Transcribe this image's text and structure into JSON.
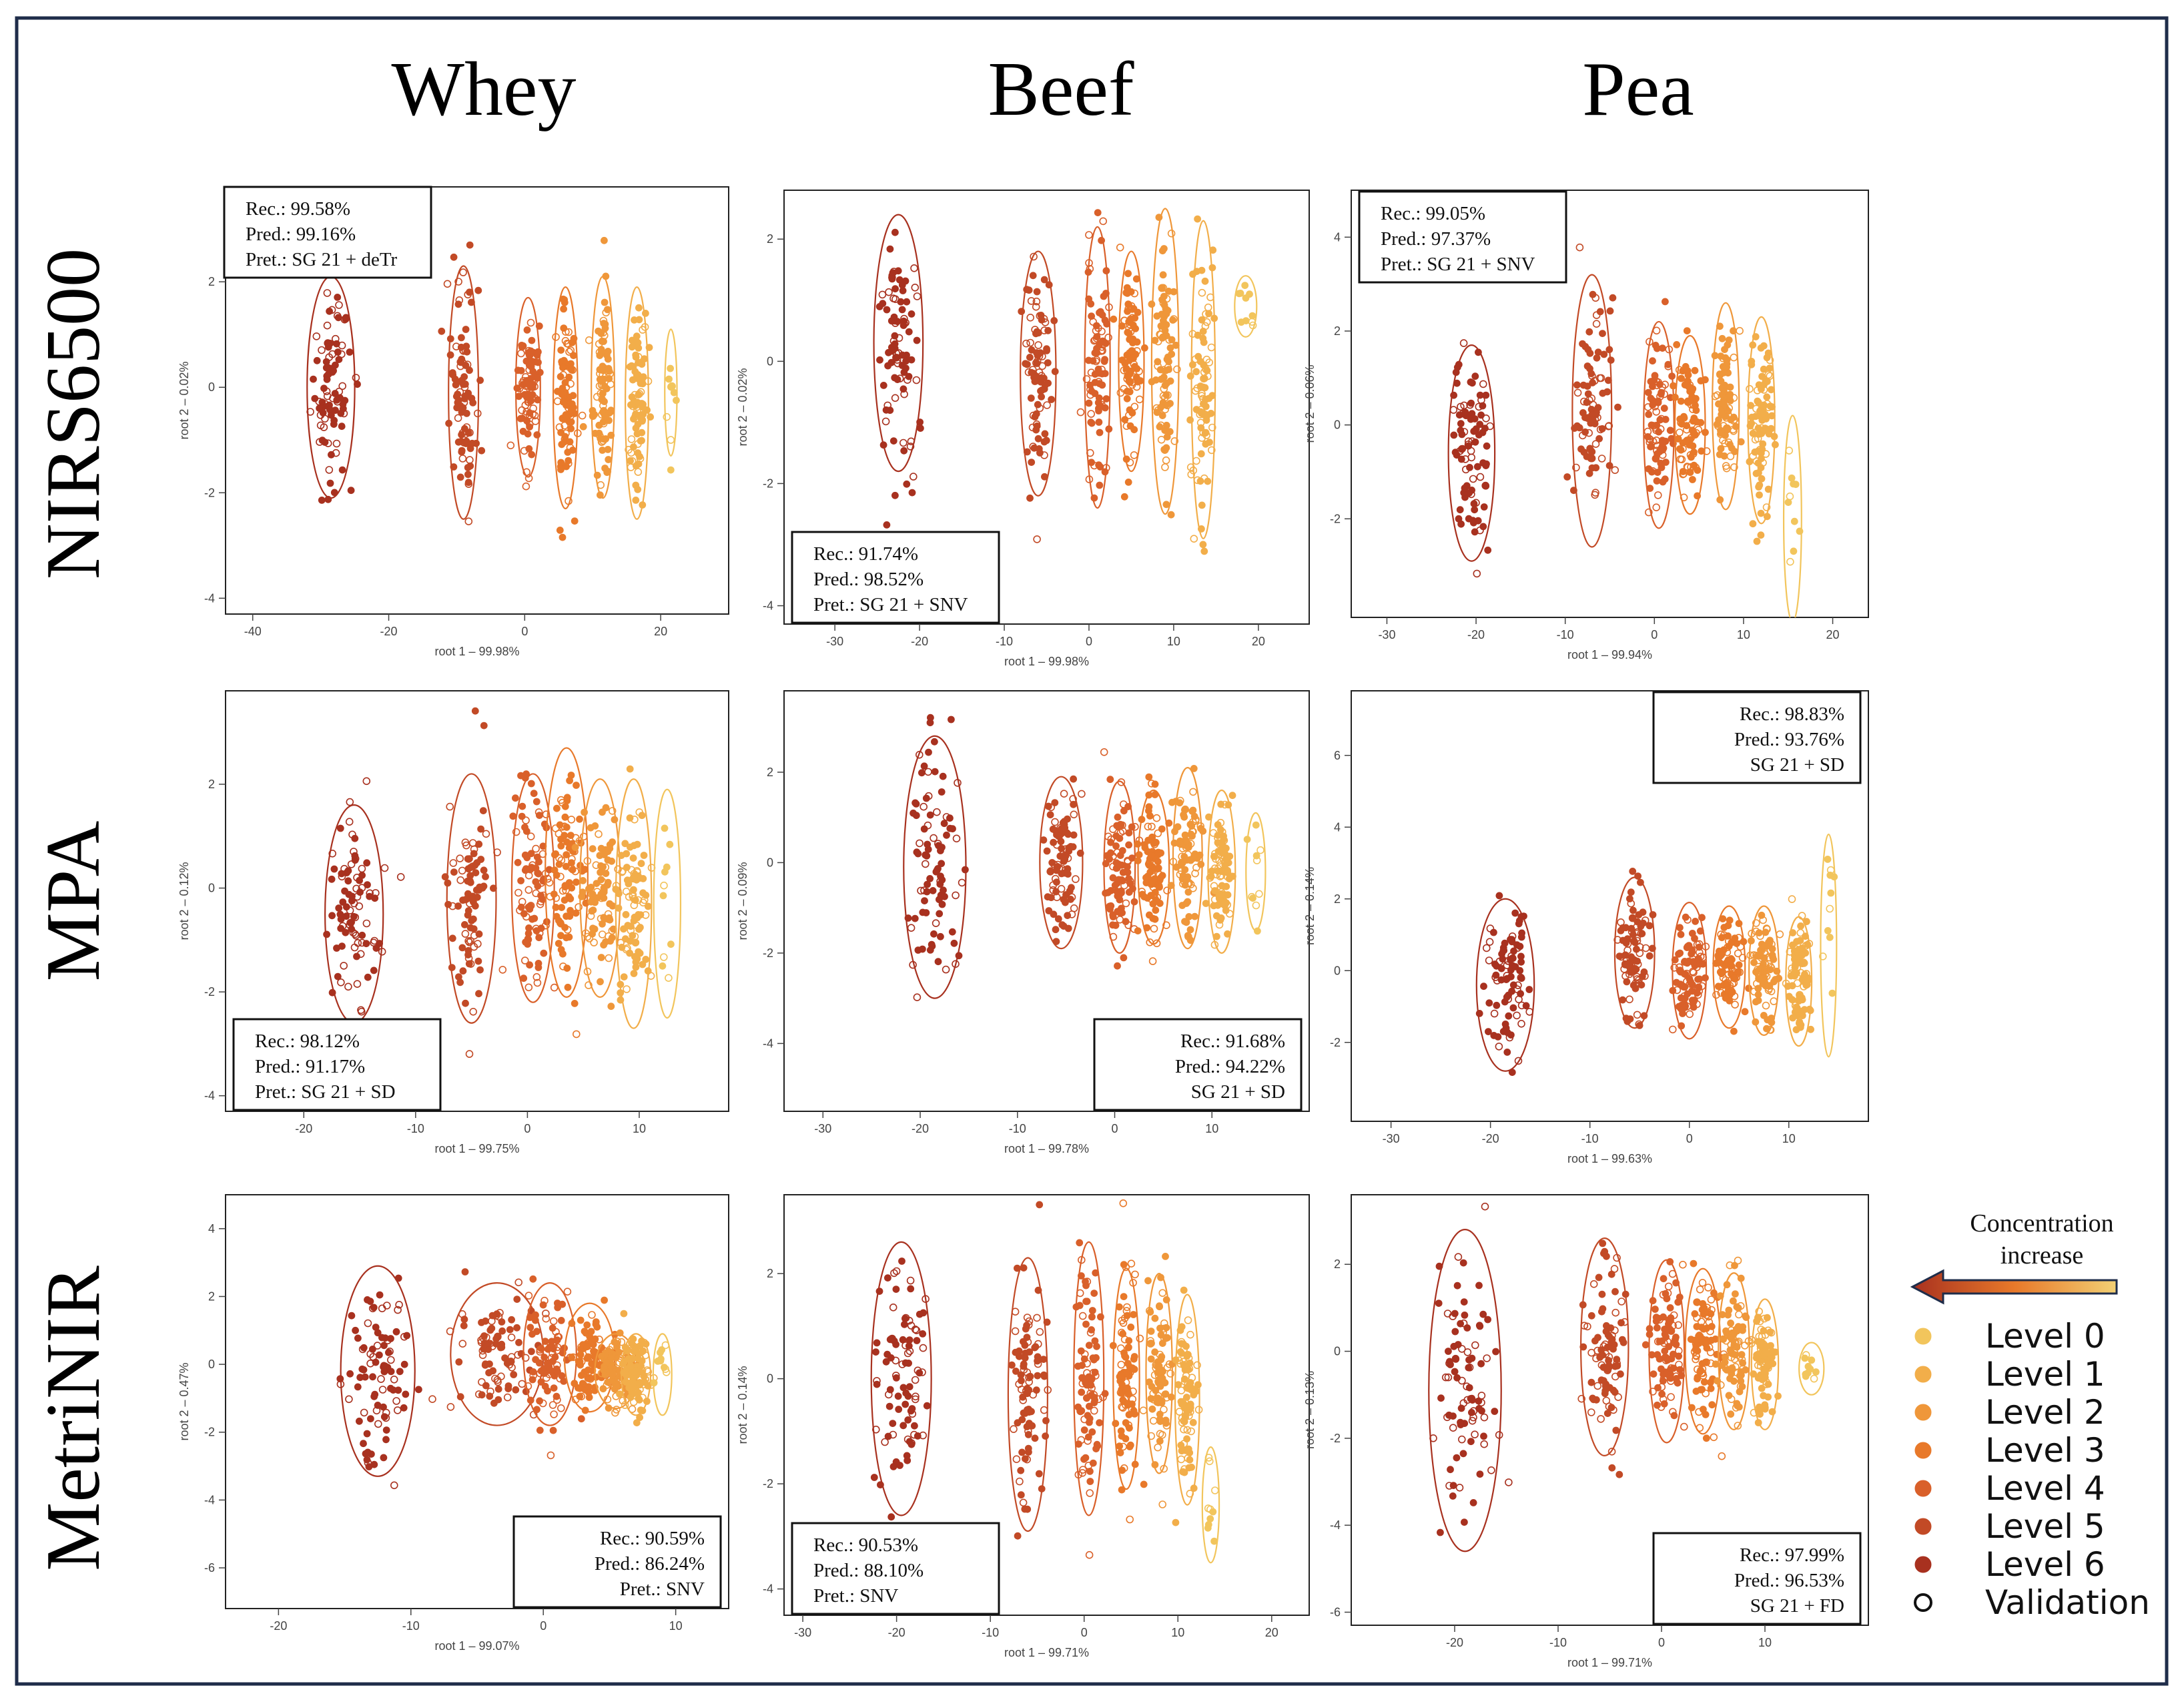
{
  "figure": {
    "columns": [
      "Whey",
      "Beef",
      "Pea"
    ],
    "rows": [
      "NIRS6500",
      "MPA",
      "MetriNIR"
    ]
  },
  "legend": {
    "title_line1": "Concentration",
    "title_line2": "increase",
    "items": [
      {
        "label": "Level 0",
        "color": "#F2C55C"
      },
      {
        "label": "Level 1",
        "color": "#F2AE4A"
      },
      {
        "label": "Level 2",
        "color": "#EF973A"
      },
      {
        "label": "Level 3",
        "color": "#E8792A"
      },
      {
        "label": "Level 4",
        "color": "#D9602A"
      },
      {
        "label": "Level 5",
        "color": "#C24A26"
      },
      {
        "label": "Level 6",
        "color": "#A8311F"
      }
    ],
    "validation_label": "Validation"
  },
  "chart_data": [
    {
      "type": "scatter",
      "instrument": "NIRS6500",
      "material": "Whey",
      "xlabel": "root 1 – 99.98%",
      "ylabel": "root 2 – 0.02%",
      "xlim": [
        -44,
        30
      ],
      "ylim": [
        -4.3,
        3.8
      ],
      "xticks": [
        -40,
        -20,
        0,
        20
      ],
      "yticks": [
        -4,
        -2,
        0,
        2
      ],
      "stats": [
        "Rec.: 99.58%",
        "Pred.: 99.16%",
        "Pret.: SG 21 + deTr"
      ],
      "stats_pos": "top-left",
      "clusters": [
        {
          "level": 6,
          "cx": -28.5,
          "cy": 0,
          "rx": 3.5,
          "ry": 2.1
        },
        {
          "level": 5,
          "cx": -9,
          "cy": -0.1,
          "rx": 2.2,
          "ry": 2.4
        },
        {
          "level": 4,
          "cx": 0.5,
          "cy": 0,
          "rx": 1.8,
          "ry": 1.7
        },
        {
          "level": 3,
          "cx": 6,
          "cy": -0.2,
          "rx": 1.8,
          "ry": 2.1
        },
        {
          "level": 2,
          "cx": 11.5,
          "cy": 0,
          "rx": 1.7,
          "ry": 2.1
        },
        {
          "level": 1,
          "cx": 16.5,
          "cy": -0.3,
          "rx": 1.7,
          "ry": 2.2
        },
        {
          "level": 0,
          "cx": 21.5,
          "cy": -0.1,
          "rx": 0.9,
          "ry": 1.2
        }
      ]
    },
    {
      "type": "scatter",
      "instrument": "NIRS6500",
      "material": "Beef",
      "xlabel": "root 1 – 99.98%",
      "ylabel": "root 2 – 0.02%",
      "xlim": [
        -36,
        26
      ],
      "ylim": [
        -4.3,
        2.8
      ],
      "xticks": [
        -30,
        -20,
        -10,
        0,
        10,
        20
      ],
      "yticks": [
        -4,
        -2,
        0,
        2
      ],
      "stats": [
        "Rec.: 91.74%",
        "Pred.: 98.52%",
        "Pret.: SG 21 + SNV"
      ],
      "stats_pos": "bottom-left",
      "clusters": [
        {
          "level": 6,
          "cx": -22.5,
          "cy": 0.3,
          "rx": 2.9,
          "ry": 2.1
        },
        {
          "level": 5,
          "cx": -6,
          "cy": -0.2,
          "rx": 2.1,
          "ry": 2.0
        },
        {
          "level": 4,
          "cx": 1,
          "cy": -0.1,
          "rx": 1.5,
          "ry": 2.3
        },
        {
          "level": 3,
          "cx": 5,
          "cy": 0,
          "rx": 1.5,
          "ry": 1.8
        },
        {
          "level": 2,
          "cx": 9,
          "cy": 0,
          "rx": 1.6,
          "ry": 2.5
        },
        {
          "level": 1,
          "cx": 13.5,
          "cy": -0.3,
          "rx": 1.4,
          "ry": 2.6
        },
        {
          "level": 0,
          "cx": 18.5,
          "cy": 0.9,
          "rx": 1.3,
          "ry": 0.5
        }
      ]
    },
    {
      "type": "scatter",
      "instrument": "NIRS6500",
      "material": "Pea",
      "xlabel": "root 1 – 99.94%",
      "ylabel": "root 2 – 0.06%",
      "xlim": [
        -34,
        24
      ],
      "ylim": [
        -4.1,
        5.0
      ],
      "xticks": [
        -30,
        -20,
        -10,
        0,
        10,
        20
      ],
      "yticks": [
        -2,
        0,
        2,
        4
      ],
      "stats": [
        "Rec.: 99.05%",
        "Pred.: 97.37%",
        "Pret.: SG 21 + SNV"
      ],
      "stats_pos": "top-left",
      "clusters": [
        {
          "level": 6,
          "cx": -20.5,
          "cy": -0.6,
          "rx": 2.6,
          "ry": 2.3
        },
        {
          "level": 5,
          "cx": -7,
          "cy": 0.3,
          "rx": 2.2,
          "ry": 2.9
        },
        {
          "level": 4,
          "cx": 0.5,
          "cy": 0,
          "rx": 1.7,
          "ry": 2.2
        },
        {
          "level": 3,
          "cx": 4,
          "cy": 0,
          "rx": 1.7,
          "ry": 1.9
        },
        {
          "level": 2,
          "cx": 8,
          "cy": 0.4,
          "rx": 1.5,
          "ry": 2.2
        },
        {
          "level": 1,
          "cx": 12,
          "cy": 0.1,
          "rx": 1.5,
          "ry": 2.2
        },
        {
          "level": 0,
          "cx": 15.5,
          "cy": -2.0,
          "rx": 1.0,
          "ry": 2.2
        }
      ]
    },
    {
      "type": "scatter",
      "instrument": "MPA",
      "material": "Whey",
      "xlabel": "root 1 – 99.75%",
      "ylabel": "root 2 – 0.12%",
      "xlim": [
        -27,
        18
      ],
      "ylim": [
        -4.3,
        3.8
      ],
      "xticks": [
        -20,
        -10,
        0,
        10
      ],
      "yticks": [
        -4,
        -2,
        0,
        2
      ],
      "stats": [
        "Rec.: 98.12%",
        "Pred.: 91.17%",
        "Pret.: SG 21 + SD"
      ],
      "stats_pos": "bottom-left",
      "clusters": [
        {
          "level": 6,
          "cx": -15.5,
          "cy": -0.5,
          "rx": 2.6,
          "ry": 2.1
        },
        {
          "level": 5,
          "cx": -5,
          "cy": -0.2,
          "rx": 2.2,
          "ry": 2.4
        },
        {
          "level": 4,
          "cx": 0.5,
          "cy": 0,
          "rx": 1.9,
          "ry": 2.2
        },
        {
          "level": 3,
          "cx": 3.5,
          "cy": 0.3,
          "rx": 1.9,
          "ry": 2.4
        },
        {
          "level": 2,
          "cx": 6.5,
          "cy": 0,
          "rx": 1.8,
          "ry": 2.1
        },
        {
          "level": 1,
          "cx": 9.5,
          "cy": -0.3,
          "rx": 1.6,
          "ry": 2.4
        },
        {
          "level": 0,
          "cx": 12.5,
          "cy": -0.3,
          "rx": 1.2,
          "ry": 2.2
        }
      ]
    },
    {
      "type": "scatter",
      "instrument": "MPA",
      "material": "Beef",
      "xlabel": "root 1 – 99.78%",
      "ylabel": "root 2 – 0.09%",
      "xlim": [
        -34,
        20
      ],
      "ylim": [
        -5.5,
        3.8
      ],
      "xticks": [
        -30,
        -20,
        -10,
        0,
        10
      ],
      "yticks": [
        -4,
        -2,
        0,
        2
      ],
      "stats": [
        "Rec.: 91.68%",
        "Pred.: 94.22%",
        "SG 21 + SD"
      ],
      "stats_pos": "bottom-right",
      "clusters": [
        {
          "level": 6,
          "cx": -18.5,
          "cy": -0.1,
          "rx": 3.2,
          "ry": 2.9
        },
        {
          "level": 5,
          "cx": -5.5,
          "cy": 0,
          "rx": 2.2,
          "ry": 1.9
        },
        {
          "level": 4,
          "cx": 0.5,
          "cy": -0.1,
          "rx": 1.6,
          "ry": 1.9
        },
        {
          "level": 3,
          "cx": 4,
          "cy": -0.1,
          "rx": 1.6,
          "ry": 1.7
        },
        {
          "level": 2,
          "cx": 7.5,
          "cy": 0.1,
          "rx": 1.5,
          "ry": 2.0
        },
        {
          "level": 1,
          "cx": 11,
          "cy": -0.2,
          "rx": 1.4,
          "ry": 1.8
        },
        {
          "level": 0,
          "cx": 14.5,
          "cy": -0.2,
          "rx": 1.0,
          "ry": 1.3
        }
      ]
    },
    {
      "type": "scatter",
      "instrument": "MPA",
      "material": "Pea",
      "xlabel": "root 1 – 99.63%",
      "ylabel": "root 2 – 0.14%",
      "xlim": [
        -34,
        18
      ],
      "ylim": [
        -4.2,
        7.8
      ],
      "xticks": [
        -30,
        -20,
        -10,
        0,
        10
      ],
      "yticks": [
        -2,
        0,
        2,
        4,
        6
      ],
      "stats": [
        "Rec.: 98.83%",
        "Pred.: 93.76%",
        "SG 21 + SD"
      ],
      "stats_pos": "top-right",
      "clusters": [
        {
          "level": 6,
          "cx": -18.5,
          "cy": -0.4,
          "rx": 2.9,
          "ry": 2.4
        },
        {
          "level": 5,
          "cx": -5.5,
          "cy": 0.5,
          "rx": 2.0,
          "ry": 2.1
        },
        {
          "level": 4,
          "cx": 0,
          "cy": 0,
          "rx": 1.7,
          "ry": 1.9
        },
        {
          "level": 3,
          "cx": 4,
          "cy": 0.1,
          "rx": 1.6,
          "ry": 1.7
        },
        {
          "level": 2,
          "cx": 7.5,
          "cy": 0,
          "rx": 1.5,
          "ry": 1.8
        },
        {
          "level": 1,
          "cx": 11,
          "cy": -0.3,
          "rx": 1.3,
          "ry": 1.8
        },
        {
          "level": 0,
          "cx": 14,
          "cy": 0.7,
          "rx": 0.8,
          "ry": 3.1
        }
      ]
    },
    {
      "type": "scatter",
      "instrument": "MetriNIR",
      "material": "Whey",
      "xlabel": "root 1 – 99.07%",
      "ylabel": "root 2 – 0.47%",
      "xlim": [
        -24,
        14
      ],
      "ylim": [
        -7.2,
        5.0
      ],
      "xticks": [
        -20,
        -10,
        0,
        10
      ],
      "yticks": [
        -6,
        -4,
        -2,
        0,
        2,
        4
      ],
      "stats": [
        "Rec.: 90.59%",
        "Pred.: 86.24%",
        "Pret.: SNV"
      ],
      "stats_pos": "bottom-right",
      "clusters": [
        {
          "level": 6,
          "cx": -12.5,
          "cy": -0.2,
          "rx": 2.8,
          "ry": 3.1
        },
        {
          "level": 5,
          "cx": -3.5,
          "cy": 0.3,
          "rx": 3.5,
          "ry": 2.1
        },
        {
          "level": 4,
          "cx": 0.5,
          "cy": 0.3,
          "rx": 2.0,
          "ry": 2.1
        },
        {
          "level": 3,
          "cx": 3.5,
          "cy": 0.2,
          "rx": 1.9,
          "ry": 1.6
        },
        {
          "level": 2,
          "cx": 5.5,
          "cy": -0.2,
          "rx": 1.6,
          "ry": 1.1
        },
        {
          "level": 1,
          "cx": 7,
          "cy": -0.3,
          "rx": 1.1,
          "ry": 1.2
        },
        {
          "level": 0,
          "cx": 9,
          "cy": -0.3,
          "rx": 0.7,
          "ry": 1.2
        }
      ]
    },
    {
      "type": "scatter",
      "instrument": "MetriNIR",
      "material": "Beef",
      "xlabel": "root 1 – 99.71%",
      "ylabel": "root 2 – 0.14%",
      "xlim": [
        -32,
        24
      ],
      "ylim": [
        -4.5,
        3.5
      ],
      "xticks": [
        -30,
        -20,
        -10,
        0,
        10,
        20
      ],
      "yticks": [
        -4,
        -2,
        0,
        2
      ],
      "stats": [
        "Rec.: 90.53%",
        "Pred.: 88.10%",
        "Pret.: SNV"
      ],
      "stats_pos": "bottom-left",
      "clusters": [
        {
          "level": 6,
          "cx": -19.5,
          "cy": 0,
          "rx": 3.2,
          "ry": 2.6
        },
        {
          "level": 5,
          "cx": -6,
          "cy": -0.3,
          "rx": 2.1,
          "ry": 2.6
        },
        {
          "level": 4,
          "cx": 0.5,
          "cy": 0,
          "rx": 1.6,
          "ry": 2.6
        },
        {
          "level": 3,
          "cx": 4.5,
          "cy": 0,
          "rx": 1.4,
          "ry": 2.1
        },
        {
          "level": 2,
          "cx": 8,
          "cy": 0.1,
          "rx": 1.4,
          "ry": 1.9
        },
        {
          "level": 1,
          "cx": 11,
          "cy": -0.4,
          "rx": 1.3,
          "ry": 2.0
        },
        {
          "level": 0,
          "cx": 13.5,
          "cy": -2.4,
          "rx": 0.9,
          "ry": 1.1
        }
      ]
    },
    {
      "type": "scatter",
      "instrument": "MetriNIR",
      "material": "Pea",
      "xlabel": "root 1 – 99.71%",
      "ylabel": "root 2 – 0.13%",
      "xlim": [
        -30,
        20
      ],
      "ylim": [
        -6.3,
        3.6
      ],
      "xticks": [
        -20,
        -10,
        0,
        10
      ],
      "yticks": [
        -6,
        -4,
        -2,
        0,
        2
      ],
      "stats": [
        "Rec.: 97.99%",
        "Pred.: 96.53%",
        "SG 21 + FD"
      ],
      "stats_pos": "bottom-right",
      "clusters": [
        {
          "level": 6,
          "cx": -19,
          "cy": -0.9,
          "rx": 3.5,
          "ry": 3.7
        },
        {
          "level": 5,
          "cx": -5.5,
          "cy": 0.1,
          "rx": 2.3,
          "ry": 2.5
        },
        {
          "level": 4,
          "cx": 0.5,
          "cy": 0,
          "rx": 1.7,
          "ry": 2.1
        },
        {
          "level": 3,
          "cx": 4,
          "cy": 0,
          "rx": 1.7,
          "ry": 1.9
        },
        {
          "level": 2,
          "cx": 7,
          "cy": 0,
          "rx": 1.5,
          "ry": 1.8
        },
        {
          "level": 1,
          "cx": 10,
          "cy": -0.3,
          "rx": 1.3,
          "ry": 1.5
        },
        {
          "level": 0,
          "cx": 14.5,
          "cy": -0.4,
          "rx": 1.2,
          "ry": 0.6
        }
      ]
    }
  ]
}
